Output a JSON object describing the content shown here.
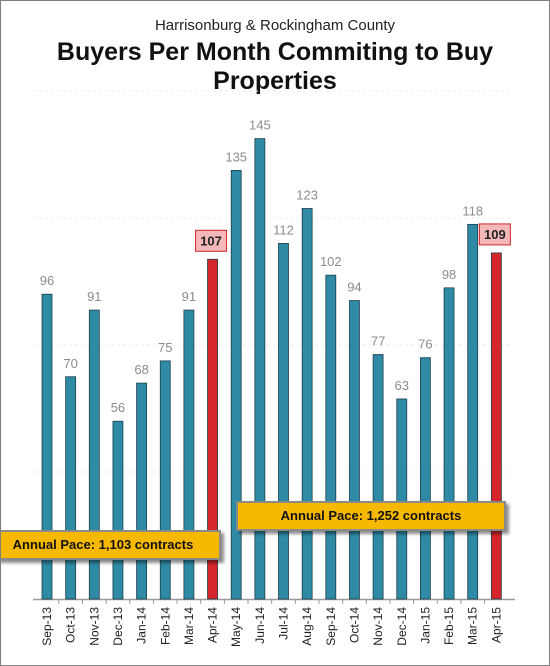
{
  "header": {
    "subtitle": "Harrisonburg & Rockingham County",
    "title": "Buyers Per Month Commiting to Buy Properties"
  },
  "annotations": {
    "pace_2014": "Annual Pace: 1,103 contracts",
    "pace_2015": "Annual Pace: 1,252 contracts"
  },
  "colors": {
    "bar": "#2e8aa5",
    "highlight": "#d4262b",
    "highlight_label_bg": "#f5b8b8",
    "highlight_label_border": "#d4262b",
    "label": "#8c8c8c",
    "pace_box": "#f7b900"
  },
  "chart_data": {
    "type": "bar",
    "title": "Buyers Per Month Commiting to Buy Properties",
    "subtitle": "Harrisonburg & Rockingham County",
    "xlabel": "",
    "ylabel": "",
    "ylim": [
      0,
      160
    ],
    "grid": true,
    "categories": [
      "Sep-13",
      "Oct-13",
      "Nov-13",
      "Dec-13",
      "Jan-14",
      "Feb-14",
      "Mar-14",
      "Apr-14",
      "May-14",
      "Jun-14",
      "Jul-14",
      "Aug-14",
      "Sep-14",
      "Oct-14",
      "Nov-14",
      "Dec-14",
      "Jan-15",
      "Feb-15",
      "Mar-15",
      "Apr-15"
    ],
    "values": [
      96,
      70,
      91,
      56,
      68,
      75,
      91,
      107,
      135,
      145,
      112,
      123,
      102,
      94,
      77,
      63,
      76,
      98,
      118,
      109
    ],
    "highlighted": [
      "Apr-14",
      "Apr-15"
    ]
  }
}
